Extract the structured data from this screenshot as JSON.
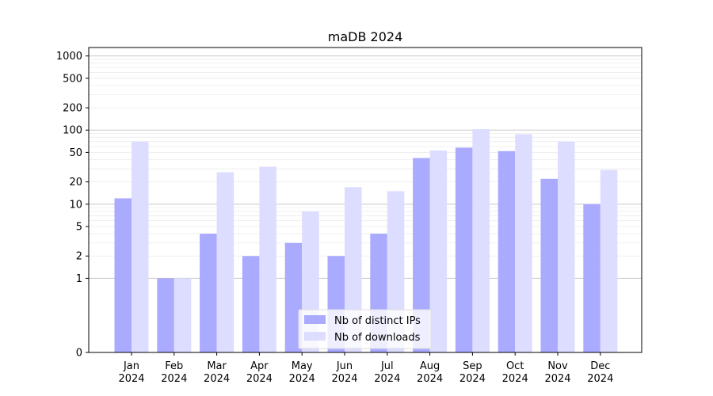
{
  "chart_data": {
    "type": "bar",
    "title": "maDB 2024",
    "xlabel": "",
    "ylabel": "",
    "yscale": "symlog",
    "ylim": [
      0,
      1300
    ],
    "grid": true,
    "legend_position": "bottom-center",
    "categories": [
      [
        "Jan",
        "2024"
      ],
      [
        "Feb",
        "2024"
      ],
      [
        "Mar",
        "2024"
      ],
      [
        "Apr",
        "2024"
      ],
      [
        "May",
        "2024"
      ],
      [
        "Jun",
        "2024"
      ],
      [
        "Jul",
        "2024"
      ],
      [
        "Aug",
        "2024"
      ],
      [
        "Sep",
        "2024"
      ],
      [
        "Oct",
        "2024"
      ],
      [
        "Nov",
        "2024"
      ],
      [
        "Dec",
        "2024"
      ]
    ],
    "yticks": [
      0,
      1,
      2,
      5,
      10,
      20,
      50,
      100,
      200,
      500,
      1000
    ],
    "series": [
      {
        "name": "Nb of distinct IPs",
        "color": "#aaaaff",
        "values": [
          12,
          1,
          4,
          2,
          3,
          2,
          4,
          42,
          58,
          52,
          22,
          10
        ]
      },
      {
        "name": "Nb of downloads",
        "color": "#ddddff",
        "values": [
          70,
          1,
          27,
          32,
          8,
          17,
          15,
          53,
          103,
          88,
          70,
          29
        ]
      }
    ]
  }
}
